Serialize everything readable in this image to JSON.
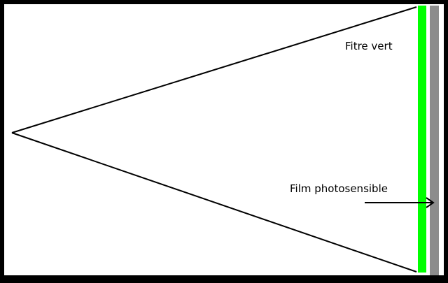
{
  "labels": {
    "filter": "Fitre vert",
    "film": "Film photosensible"
  },
  "colors": {
    "frame": "#000000",
    "background": "#ffffff",
    "filter": "#00ff00",
    "film": "#8c8c8c",
    "lines": "#000000"
  }
}
